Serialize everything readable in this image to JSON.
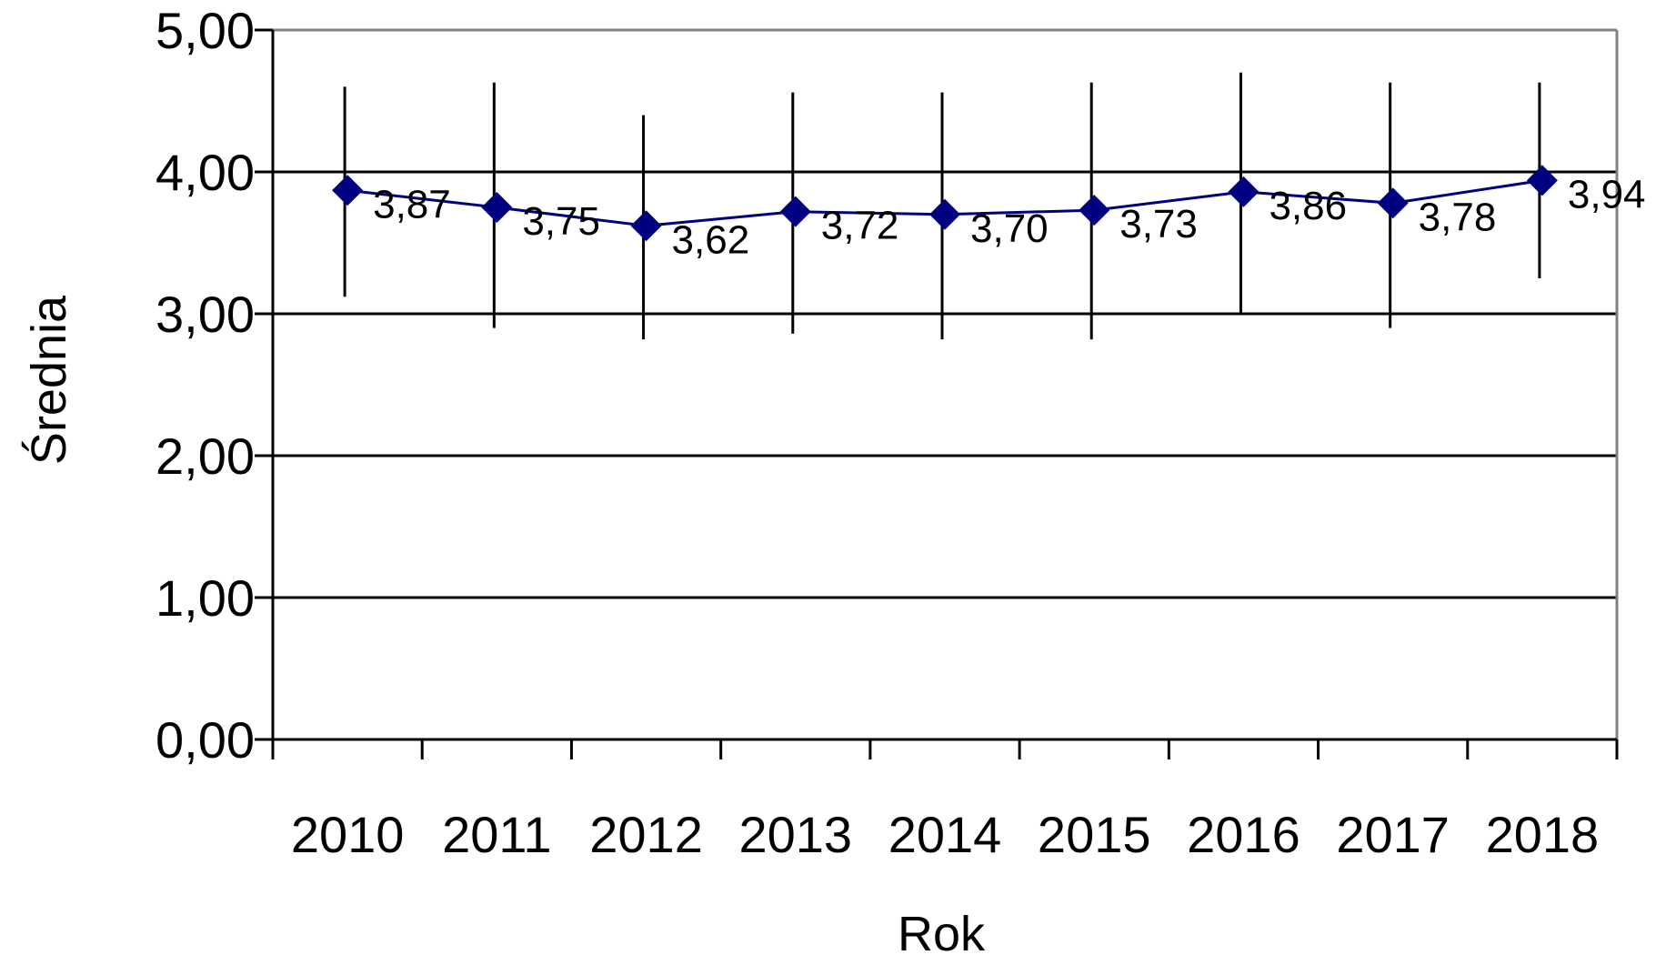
{
  "chart_data": {
    "type": "line",
    "title": "",
    "xlabel": "Rok",
    "ylabel": "Średnia",
    "ylim": [
      0,
      5
    ],
    "yticks": [
      "0,00",
      "1,00",
      "2,00",
      "3,00",
      "4,00",
      "5,00"
    ],
    "grid": true,
    "legend": "none",
    "categories": [
      "2010",
      "2011",
      "2012",
      "2013",
      "2014",
      "2015",
      "2016",
      "2017",
      "2018"
    ],
    "series": [
      {
        "values": [
          3.87,
          3.75,
          3.62,
          3.72,
          3.7,
          3.73,
          3.86,
          3.78,
          3.94
        ],
        "labels": [
          "3,87",
          "3,75",
          "3,62",
          "3,72",
          "3,70",
          "3,73",
          "3,86",
          "3,78",
          "3,94"
        ],
        "error_low": [
          3.12,
          2.9,
          2.82,
          2.86,
          2.82,
          2.82,
          3.01,
          2.9,
          3.25
        ],
        "error_high": [
          4.6,
          4.63,
          4.4,
          4.56,
          4.56,
          4.63,
          4.7,
          4.63,
          4.63
        ],
        "color": "#000080",
        "marker": "diamond"
      }
    ],
    "colors": {
      "line": "#000080",
      "gridline": "#000000",
      "errorbar": "#000000",
      "plot_border": "#808080"
    }
  }
}
